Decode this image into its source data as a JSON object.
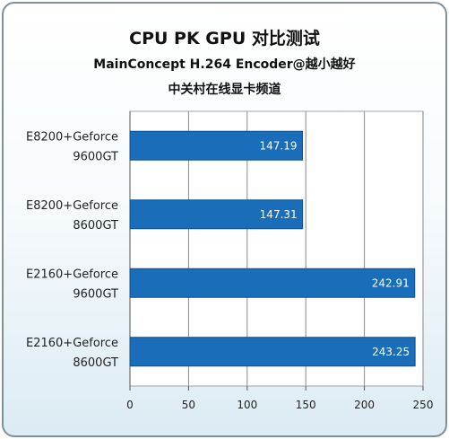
{
  "header": {
    "title": "CPU PK GPU 对比测试",
    "subtitle": "MainConcept H.264 Encoder@越小越好",
    "source": "中关村在线显卡频道"
  },
  "colors": {
    "bar": "#1a6db8",
    "bar_edge": "#0e4f8f",
    "frame": "#7f8f9c"
  },
  "chart_data": {
    "type": "bar",
    "orientation": "horizontal",
    "title": "CPU PK GPU 对比测试",
    "subtitle": "MainConcept H.264 Encoder@越小越好",
    "xlabel": "",
    "ylabel": "",
    "xlim": [
      0,
      250
    ],
    "ticks": [
      0,
      50,
      100,
      150,
      200,
      250
    ],
    "grid": true,
    "categories": [
      [
        "E8200+Geforce",
        "9600GT"
      ],
      [
        "E8200+Geforce",
        "8600GT"
      ],
      [
        "E2160+Geforce",
        "9600GT"
      ],
      [
        "E2160+Geforce",
        "8600GT"
      ]
    ],
    "values": [
      147.19,
      147.31,
      242.91,
      243.25
    ],
    "value_labels": [
      "147.19",
      "147.31",
      "242.91",
      "243.25"
    ]
  }
}
